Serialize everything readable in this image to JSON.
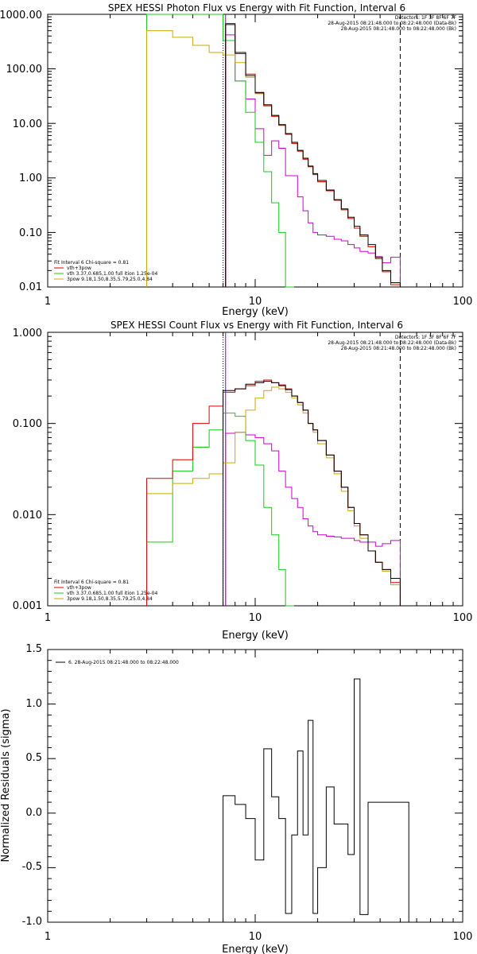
{
  "colors": {
    "total": "#000000",
    "sum": "#dd0000",
    "vth": "#11cc11",
    "bpow": "#ccaa00",
    "bk": "#cc00cc",
    "purple_line": "#8800cc",
    "axes": "#000000"
  },
  "chart_data": [
    {
      "type": "line",
      "title": "SPEX HESSI Photon Flux vs Energy with Fit Function, Interval 6",
      "xlabel": "Energy (keV)",
      "ylabel": "",
      "xscale": "log",
      "yscale": "log",
      "xlim": [
        1,
        100
      ],
      "ylim": [
        0.01,
        1000
      ],
      "xticks": [
        "1",
        "10",
        "100"
      ],
      "yticks": [
        "0.01",
        "0.10",
        "1.00",
        "10.00",
        "100.00",
        "1000.00"
      ],
      "header": [
        "Detectors: 1F 3F 8F 6F 7F",
        "28-Aug-2015 08:21:48.000 to 08:22:48.000 (Data-Bk)",
        "28-Aug-2015 08:21:48.000 to 08:22:48.000 (Bk)"
      ],
      "legend": [
        "Fit Interval 6   Chi-square = 0.81",
        "vth+3pow",
        "vth 3.37,0.685,1.00  full ition 1.25e-04",
        "3pow 9.18,1.50,8.35,5.79,25.0,4.84"
      ],
      "vlines": [
        7,
        7.2,
        50
      ],
      "series": [
        {
          "name": "Data-Bk",
          "key": "total",
          "x": [
            7.2,
            8,
            9,
            10,
            11,
            12,
            13,
            14,
            15,
            16,
            17,
            18,
            19,
            20,
            22,
            24,
            26,
            28,
            30,
            32,
            35,
            38,
            41,
            45,
            50
          ],
          "y": [
            650,
            200,
            75,
            37,
            22,
            14,
            9.5,
            6.5,
            4.5,
            3.2,
            2.3,
            1.65,
            1.2,
            0.9,
            0.6,
            0.4,
            0.27,
            0.19,
            0.13,
            0.09,
            0.06,
            0.035,
            0.02,
            0.012,
            0.01
          ]
        },
        {
          "name": "",
          "key": "sum",
          "x": [
            7.2,
            8,
            9,
            10,
            11,
            12,
            13,
            14,
            15,
            16,
            17,
            18,
            19,
            20,
            22,
            24,
            26,
            28,
            30,
            32,
            35,
            38,
            41,
            45,
            50
          ],
          "y": [
            680,
            190,
            80,
            36,
            21,
            13.5,
            9.2,
            6.3,
            4.3,
            3.1,
            2.2,
            1.6,
            1.15,
            0.85,
            0.58,
            0.39,
            0.26,
            0.18,
            0.12,
            0.085,
            0.055,
            0.033,
            0.019,
            0.011,
            0.01
          ]
        },
        {
          "name": "",
          "key": "vth",
          "x": [
            3,
            7,
            8,
            9,
            10,
            11,
            12,
            13,
            14
          ],
          "y": [
            1000,
            330,
            60,
            16,
            4.5,
            1.3,
            0.35,
            0.1,
            0.01
          ]
        },
        {
          "name": "",
          "key": "bpow",
          "x": [
            3,
            4,
            5,
            6,
            7,
            8,
            9,
            10,
            11,
            12,
            13,
            14,
            15,
            16,
            17,
            18,
            19,
            20,
            22,
            24,
            26,
            28,
            30,
            32,
            35,
            38,
            41,
            45,
            50
          ],
          "y": [
            500,
            380,
            270,
            200,
            180,
            130,
            70,
            35,
            21,
            13.5,
            9.2,
            6.3,
            4.3,
            3.1,
            2.2,
            1.6,
            1.15,
            0.85,
            0.58,
            0.39,
            0.26,
            0.18,
            0.12,
            0.085,
            0.055,
            0.033,
            0.02,
            0.012,
            0.01
          ]
        },
        {
          "name": "Bk",
          "key": "bk",
          "x": [
            7.2,
            8,
            9,
            10,
            11,
            12,
            13,
            14,
            15,
            16,
            17,
            18,
            19,
            20,
            22,
            24,
            26,
            28,
            30,
            32,
            35,
            38,
            41,
            45,
            50
          ],
          "y": [
            420,
            60,
            28,
            8,
            2.6,
            4.8,
            3.5,
            1.1,
            1.1,
            0.45,
            0.25,
            0.15,
            0.1,
            0.09,
            0.085,
            0.075,
            0.07,
            0.06,
            0.052,
            0.045,
            0.042,
            0.036,
            0.028,
            0.035,
            0.01
          ]
        }
      ]
    },
    {
      "type": "line",
      "title": "SPEX HESSI Count Flux vs Energy with Fit Function, Interval 6",
      "xlabel": "Energy (keV)",
      "ylabel": "",
      "xscale": "log",
      "yscale": "log",
      "xlim": [
        1,
        100
      ],
      "ylim": [
        0.001,
        1
      ],
      "xticks": [
        "1",
        "10",
        "100"
      ],
      "yticks": [
        "0.001",
        "0.010",
        "0.100",
        "1.000"
      ],
      "header": [
        "Detectors: 1F 3F 8F 6F 7F",
        "28-Aug-2015 08:21:48.000 to 08:22:48.000 (Data-Bk)",
        "28-Aug-2015 08:21:48.000 to 08:22:48.000 (Bk)"
      ],
      "legend": [
        "Fit Interval 6   Chi-square = 0.81",
        "vth+3pow",
        "vth 3.37,0.685,1.00  full ition 1.25e-04",
        "3pow 9.18,1.50,8.35,5.79,25.0,4.84"
      ],
      "vlines": [
        7,
        7.2,
        50
      ],
      "series": [
        {
          "name": "Data-Bk",
          "key": "total",
          "x": [
            7,
            8,
            9,
            10,
            11,
            12,
            13,
            14,
            15,
            16,
            17,
            18,
            19,
            20,
            22,
            24,
            26,
            28,
            30,
            32,
            35,
            38,
            41,
            45,
            50,
            55
          ],
          "y": [
            0.23,
            0.24,
            0.27,
            0.28,
            0.29,
            0.28,
            0.26,
            0.235,
            0.2,
            0.17,
            0.14,
            0.1,
            0.085,
            0.065,
            0.045,
            0.03,
            0.02,
            0.012,
            0.008,
            0.006,
            0.004,
            0.003,
            0.0025,
            0.002,
            0.001,
            0.001
          ]
        },
        {
          "name": "",
          "key": "sum",
          "x": [
            3,
            4,
            5,
            6,
            7,
            8,
            9,
            10,
            11,
            12,
            13,
            14,
            15,
            16,
            17,
            18,
            19,
            20,
            22,
            24,
            26,
            28,
            30,
            32,
            35,
            38,
            41,
            45,
            50,
            55
          ],
          "y": [
            0.025,
            0.04,
            0.1,
            0.155,
            0.22,
            0.24,
            0.26,
            0.29,
            0.3,
            0.28,
            0.265,
            0.24,
            0.2,
            0.17,
            0.14,
            0.1,
            0.085,
            0.065,
            0.045,
            0.03,
            0.02,
            0.012,
            0.008,
            0.006,
            0.004,
            0.003,
            0.0025,
            0.0018,
            0.001,
            0.001
          ]
        },
        {
          "name": "",
          "key": "vth",
          "x": [
            3,
            4,
            5,
            6,
            7,
            8,
            9,
            10,
            11,
            12,
            13,
            14
          ],
          "y": [
            0.005,
            0.03,
            0.055,
            0.085,
            0.13,
            0.12,
            0.065,
            0.035,
            0.012,
            0.006,
            0.0025,
            0.001
          ]
        },
        {
          "name": "",
          "key": "bpow",
          "x": [
            3,
            4,
            5,
            6,
            7,
            8,
            9,
            10,
            11,
            12,
            13,
            14,
            15,
            16,
            17,
            18,
            19,
            20,
            22,
            24,
            26,
            28,
            30,
            32,
            35,
            38,
            41,
            45,
            50,
            55
          ],
          "y": [
            0.017,
            0.022,
            0.025,
            0.028,
            0.037,
            0.08,
            0.14,
            0.19,
            0.23,
            0.25,
            0.24,
            0.22,
            0.19,
            0.16,
            0.13,
            0.1,
            0.08,
            0.06,
            0.042,
            0.028,
            0.018,
            0.011,
            0.0075,
            0.0055,
            0.004,
            0.003,
            0.0024,
            0.0017,
            0.001,
            0.001
          ]
        },
        {
          "name": "Bk",
          "key": "bk",
          "x": [
            7.2,
            8,
            9,
            10,
            11,
            12,
            13,
            14,
            15,
            16,
            17,
            18,
            19,
            20,
            22,
            24,
            26,
            28,
            30,
            32,
            35,
            38,
            41,
            45,
            50
          ],
          "y": [
            0.078,
            0.08,
            0.075,
            0.07,
            0.06,
            0.05,
            0.03,
            0.02,
            0.015,
            0.012,
            0.009,
            0.0075,
            0.0065,
            0.006,
            0.0058,
            0.0057,
            0.0055,
            0.0055,
            0.0052,
            0.005,
            0.005,
            0.0045,
            0.0048,
            0.0052,
            0.001
          ]
        }
      ]
    },
    {
      "type": "line",
      "title": "",
      "xlabel": "Energy (keV)",
      "ylabel": "Normalized Residuals (sigma)",
      "xscale": "log",
      "yscale": "linear",
      "xlim": [
        1,
        100
      ],
      "ylim": [
        -1.0,
        1.5
      ],
      "xticks": [
        "1",
        "10",
        "100"
      ],
      "yticks": [
        "-1.0",
        "-0.5",
        "0.0",
        "0.5",
        "1.0",
        "1.5"
      ],
      "legend": [
        "6. 28-Aug-2015 08:21:48.000 to 08:22:48.000"
      ],
      "series": [
        {
          "name": "6. 28-Aug-2015 08:21:48.000 to 08:22:48.000",
          "key": "total",
          "x": [
            7,
            8,
            9,
            10,
            11,
            12,
            13,
            14,
            15,
            16,
            17,
            18,
            19,
            20,
            22,
            24,
            26,
            28,
            30,
            32,
            35,
            38,
            41,
            45,
            50
          ],
          "y": [
            0.16,
            0.08,
            -0.05,
            -0.43,
            0.59,
            0.15,
            -0.05,
            -0.92,
            -0.2,
            0.57,
            -0.2,
            0.85,
            -0.92,
            -0.5,
            0.24,
            -0.1,
            -0.1,
            -0.38,
            1.23,
            -0.93,
            0.1,
            0.1,
            0.1,
            0.1,
            0.1
          ]
        }
      ]
    }
  ]
}
